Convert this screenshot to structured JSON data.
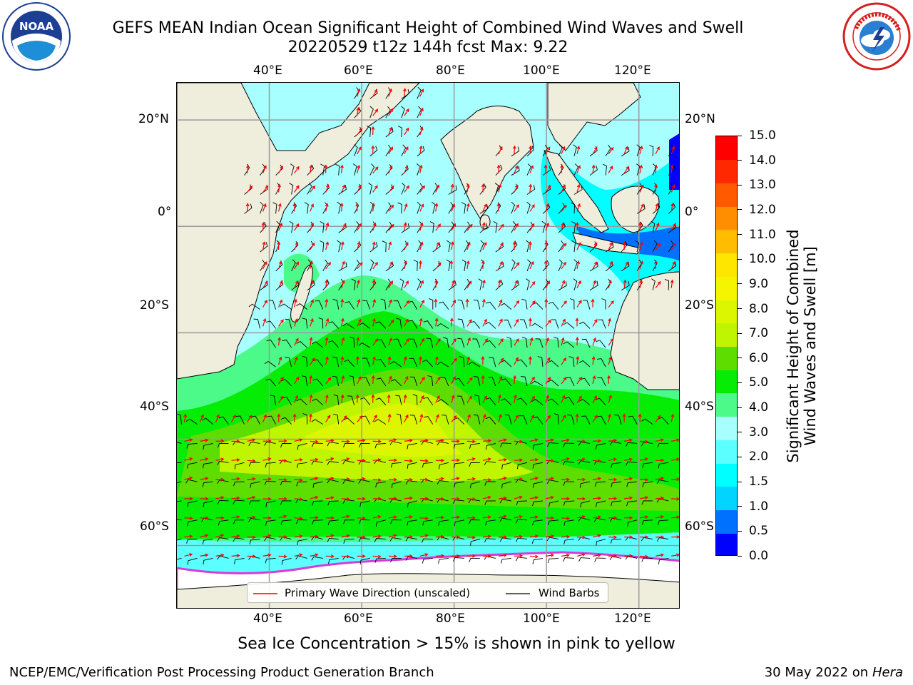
{
  "title": {
    "line1": "GEFS MEAN Indian Ocean Significant Height of Combined Wind Waves and Swell",
    "line2": "20220529 t12z 144h fcst   Max: 9.22"
  },
  "logos": {
    "left": {
      "icon": "noaa-logo",
      "text": "NOAA"
    },
    "right": {
      "icon": "nws-logo",
      "text": "NATIONAL WEATHER SERVICE"
    }
  },
  "map": {
    "lon_ticks": [
      "40°E",
      "60°E",
      "80°E",
      "100°E",
      "120°E"
    ],
    "lon_values": [
      40,
      60,
      80,
      100,
      120
    ],
    "lat_ticks": [
      "20°N",
      "0°",
      "20°S",
      "40°S",
      "60°S"
    ],
    "lat_values": [
      20,
      0,
      -20,
      -40,
      -60
    ],
    "lon_range": [
      20,
      129
    ],
    "lat_range": [
      -72,
      27
    ],
    "land_color": "#efeddc",
    "ice_color": "#ffffff",
    "grid": true,
    "legend": {
      "placement": "bottom-center",
      "items": [
        {
          "label": "Primary Wave Direction (unscaled)",
          "color": "#ff0000"
        },
        {
          "label": "Wind Barbs",
          "color": "#000000"
        }
      ]
    },
    "note": "Sea Ice Concentration > 15% is shown in pink to yellow"
  },
  "colorbar": {
    "label": "Significant Height of Combined Wind Waves and Swell [m]",
    "label_lines": [
      "Significant Height of Combined",
      "Wind Waves and Swell [m]"
    ],
    "ticks": [
      "0.0",
      "0.5",
      "1.0",
      "1.5",
      "2.0",
      "3.0",
      "4.0",
      "5.0",
      "6.0",
      "7.0",
      "8.0",
      "9.0",
      "10.0",
      "11.0",
      "12.0",
      "13.0",
      "14.0",
      "15.0"
    ],
    "colors": [
      "#0000ff",
      "#0071ff",
      "#00d4ff",
      "#00ffff",
      "#5cffff",
      "#a7ffff",
      "#4bfa88",
      "#05ec05",
      "#5ddd00",
      "#c0f500",
      "#dbf600",
      "#f5f500",
      "#ffe600",
      "#ffbc00",
      "#ff8f00",
      "#ff5a00",
      "#ff2800",
      "#ff0000"
    ]
  },
  "footer": {
    "left": "NCEP/EMC/Verification Post Processing Product Generation Branch",
    "right_date": "30 May 2022 on",
    "right_host": "Hera"
  }
}
